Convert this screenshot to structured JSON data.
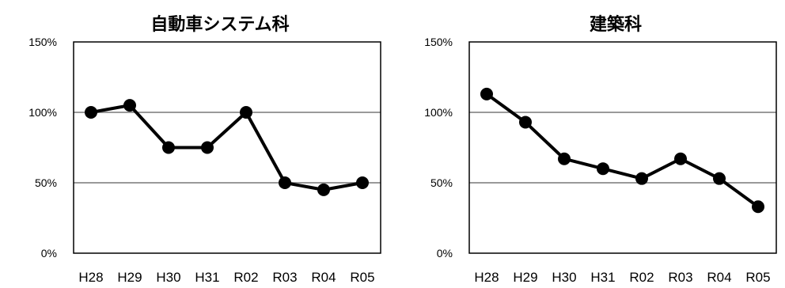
{
  "chart_data": [
    {
      "type": "line",
      "title": "自動車システム科",
      "categories": [
        "H28",
        "H29",
        "H30",
        "H31",
        "R02",
        "R03",
        "R04",
        "R05"
      ],
      "values": [
        100,
        105,
        75,
        75,
        100,
        50,
        45,
        50
      ],
      "y_unit": "%",
      "ylim": [
        0,
        150
      ],
      "yticks": [
        "0%",
        "50%",
        "100%",
        "150%"
      ],
      "grid": true,
      "line_color": "#000000",
      "grid_color": "#9a9a9a"
    },
    {
      "type": "line",
      "title": "建築科",
      "categories": [
        "H28",
        "H29",
        "H30",
        "H31",
        "R02",
        "R03",
        "R04",
        "R05"
      ],
      "values": [
        113,
        93,
        67,
        60,
        53,
        67,
        53,
        33
      ],
      "y_unit": "%",
      "ylim": [
        0,
        150
      ],
      "yticks": [
        "0%",
        "50%",
        "100%",
        "150%"
      ],
      "grid": true,
      "line_color": "#000000",
      "grid_color": "#9a9a9a"
    }
  ]
}
